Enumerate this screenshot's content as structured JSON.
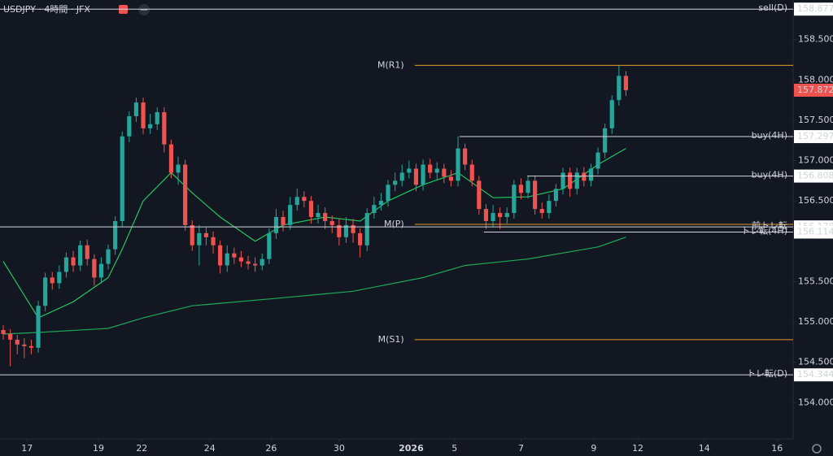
{
  "chart_data": {
    "type": "candlestick",
    "title": "USDJPY · 4時間 · JFX",
    "up_color": "#26a69a",
    "down_color": "#ef5350",
    "xlim": [
      -0.47,
      112.9
    ],
    "ylim": [
      153.55,
      158.99
    ],
    "xticks": [
      {
        "value": 3.4,
        "label": "17"
      },
      {
        "value": 13.6,
        "label": "19"
      },
      {
        "value": 19.8,
        "label": "22"
      },
      {
        "value": 29.5,
        "label": "24"
      },
      {
        "value": 38.3,
        "label": "26"
      },
      {
        "value": 48,
        "label": "30"
      },
      {
        "value": 58.3,
        "label": "2026"
      },
      {
        "value": 64.5,
        "label": "5"
      },
      {
        "value": 74,
        "label": "7"
      },
      {
        "value": 84.4,
        "label": "9"
      },
      {
        "value": 90.7,
        "label": "12"
      },
      {
        "value": 100.2,
        "label": "14"
      },
      {
        "value": 110.6,
        "label": "16"
      }
    ],
    "yticks": [
      {
        "value": 154,
        "label": "154.000"
      },
      {
        "value": 154.5,
        "label": "154.500"
      },
      {
        "value": 155,
        "label": "155.000"
      },
      {
        "value": 155.5,
        "label": "155.500"
      },
      {
        "value": 156.5,
        "label": "156.500"
      },
      {
        "value": 157,
        "label": "157.000"
      },
      {
        "value": 157.5,
        "label": "157.500"
      },
      {
        "value": 158,
        "label": "158.000"
      },
      {
        "value": 158.5,
        "label": "158.500"
      }
    ],
    "open": [
      154.9,
      154.85,
      154.78,
      154.72,
      154.7,
      154.68,
      155.2,
      155.55,
      155.48,
      155.62,
      155.8,
      155.7,
      155.95,
      155.78,
      155.55,
      155.72,
      155.9,
      156.25,
      157.3,
      157.55,
      157.72,
      157.4,
      157.45,
      157.6,
      157.2,
      156.85,
      156.95,
      156.2,
      155.95,
      156.1,
      156.05,
      155.95,
      155.7,
      155.85,
      155.8,
      155.75,
      155.72,
      155.7,
      155.78,
      156.1,
      156.3,
      156.2,
      156.45,
      156.55,
      156.5,
      156.3,
      156.35,
      156.25,
      156.2,
      156.05,
      156.2,
      156.1,
      155.95,
      156.35,
      156.45,
      156.5,
      156.7,
      156.75,
      156.85,
      156.9,
      156.7,
      156.95,
      156.85,
      156.9,
      156.8,
      156.75,
      157.15,
      156.95,
      156.75,
      156.4,
      156.25,
      156.35,
      156.3,
      156.35,
      156.7,
      156.6,
      156.75,
      156.4,
      156.35,
      156.5,
      156.65,
      156.85,
      156.65,
      156.85,
      156.75,
      156.9,
      157.1,
      157.4,
      157.75,
      158.05
    ],
    "high": [
      154.96,
      154.91,
      154.84,
      154.8,
      154.78,
      155.26,
      155.61,
      155.62,
      155.7,
      155.86,
      155.88,
      156.01,
      156.02,
      155.84,
      155.8,
      155.96,
      156.31,
      157.36,
      157.61,
      157.78,
      157.78,
      157.58,
      157.66,
      157.66,
      157.26,
      157.05,
      157.01,
      156.26,
      156.2,
      156.18,
      156.12,
      156.01,
      155.95,
      155.92,
      155.88,
      155.82,
      155.8,
      155.85,
      156.16,
      156.4,
      156.38,
      156.55,
      156.65,
      156.62,
      156.56,
      156.45,
      156.42,
      156.32,
      156.28,
      156.3,
      156.28,
      156.16,
      156.41,
      156.55,
      156.6,
      156.76,
      156.85,
      156.95,
      157.0,
      156.96,
      157.01,
      157.02,
      156.98,
      156.96,
      156.88,
      157.3,
      157.21,
      157.01,
      156.81,
      156.46,
      156.45,
      156.42,
      156.42,
      156.76,
      156.78,
      156.81,
      156.81,
      156.48,
      156.58,
      156.71,
      156.91,
      156.91,
      156.91,
      156.92,
      156.96,
      157.16,
      157.46,
      157.81,
      158.18,
      158.11
    ],
    "low": [
      154.78,
      154.45,
      154.6,
      154.55,
      154.6,
      154.62,
      155.13,
      155.4,
      155.41,
      155.55,
      155.62,
      155.63,
      155.7,
      155.45,
      155.48,
      155.65,
      155.83,
      156.18,
      157.23,
      157.48,
      157.33,
      157.33,
      157.38,
      157.1,
      156.78,
      156.7,
      156.13,
      155.88,
      155.7,
      155.95,
      155.85,
      155.6,
      155.62,
      155.72,
      155.68,
      155.65,
      155.62,
      155.64,
      155.72,
      156.03,
      156.12,
      156.14,
      156.38,
      156.42,
      156.22,
      156.22,
      156.15,
      156.1,
      155.95,
      155.98,
      155.98,
      155.8,
      155.88,
      156.28,
      156.38,
      156.43,
      156.62,
      156.68,
      156.78,
      156.62,
      156.63,
      156.78,
      156.76,
      156.72,
      156.68,
      156.68,
      156.88,
      156.68,
      156.33,
      156.15,
      156.18,
      156.15,
      156.22,
      156.28,
      156.52,
      156.53,
      156.33,
      156.28,
      156.28,
      156.43,
      156.58,
      156.55,
      156.58,
      156.68,
      156.68,
      156.83,
      157.03,
      157.33,
      157.68,
      157.8
    ],
    "close": [
      154.85,
      154.78,
      154.72,
      154.7,
      154.68,
      155.2,
      155.55,
      155.48,
      155.62,
      155.8,
      155.7,
      155.95,
      155.78,
      155.55,
      155.72,
      155.9,
      156.25,
      157.3,
      157.55,
      157.72,
      157.4,
      157.45,
      157.6,
      157.2,
      156.85,
      156.95,
      156.2,
      155.95,
      156.1,
      156.05,
      155.95,
      155.7,
      155.85,
      155.8,
      155.75,
      155.72,
      155.7,
      155.78,
      156.1,
      156.3,
      156.2,
      156.45,
      156.55,
      156.5,
      156.3,
      156.35,
      156.25,
      156.2,
      156.05,
      156.2,
      156.1,
      155.95,
      156.35,
      156.45,
      156.5,
      156.7,
      156.75,
      156.85,
      156.9,
      156.7,
      156.95,
      156.85,
      156.9,
      156.8,
      156.75,
      157.15,
      156.95,
      156.75,
      156.4,
      156.25,
      156.35,
      156.3,
      156.35,
      156.7,
      156.6,
      156.75,
      156.4,
      156.35,
      156.5,
      156.65,
      156.85,
      156.65,
      156.85,
      156.75,
      156.9,
      157.1,
      157.4,
      157.75,
      158.05,
      157.872
    ],
    "lines": [
      {
        "color": "#22c55e",
        "x": [
          0,
          5,
          10,
          15,
          17,
          20,
          24,
          27,
          31,
          36,
          40,
          46,
          51,
          55,
          60,
          65,
          70,
          75,
          80,
          85,
          89
        ],
        "values": [
          155.75,
          155.05,
          155.25,
          155.55,
          155.9,
          156.5,
          156.85,
          156.6,
          156.3,
          156.0,
          156.2,
          156.3,
          156.25,
          156.5,
          156.7,
          156.85,
          156.54,
          156.55,
          156.65,
          156.95,
          157.15
        ]
      },
      {
        "color": "#1fa855",
        "x": [
          0,
          5,
          15,
          20,
          27,
          40,
          50,
          60,
          66,
          75,
          85,
          89
        ],
        "values": [
          154.85,
          154.87,
          154.92,
          155.05,
          155.2,
          155.3,
          155.38,
          155.55,
          155.7,
          155.78,
          155.93,
          156.05
        ]
      }
    ],
    "levels": [
      {
        "label": "sell(D)",
        "value": 158.877,
        "start": -0.47,
        "color": "#d1d4dc",
        "tag": true
      },
      {
        "label": "M(R1)",
        "value": 158.18,
        "start": 58.8,
        "color": "#e39b2d",
        "tag": false
      },
      {
        "label": "buy(4H)",
        "value": 157.297,
        "start": 65.2,
        "color": "#d1d4dc",
        "tag": true
      },
      {
        "label": "buy(4H)",
        "value": 156.808,
        "start": 74.9,
        "color": "#d1d4dc",
        "tag": true
      },
      {
        "label": "M(P)",
        "value": 156.21,
        "start": 58.8,
        "color": "#e39b2d",
        "tag": false
      },
      {
        "label": "前トレ転",
        "value": 156.178,
        "start": -0.47,
        "color": "#d1d4dc",
        "tag": true
      },
      {
        "label": "トレ転(4H)",
        "value": 156.114,
        "start": 68.7,
        "color": "#d1d4dc",
        "tag": true
      },
      {
        "label": "M(S1)",
        "value": 154.78,
        "start": 58.8,
        "color": "#e39b2d",
        "tag": false
      },
      {
        "label": "トレ転(D)",
        "value": 154.344,
        "start": -0.47,
        "color": "#d1d4dc",
        "tag": true
      }
    ]
  }
}
